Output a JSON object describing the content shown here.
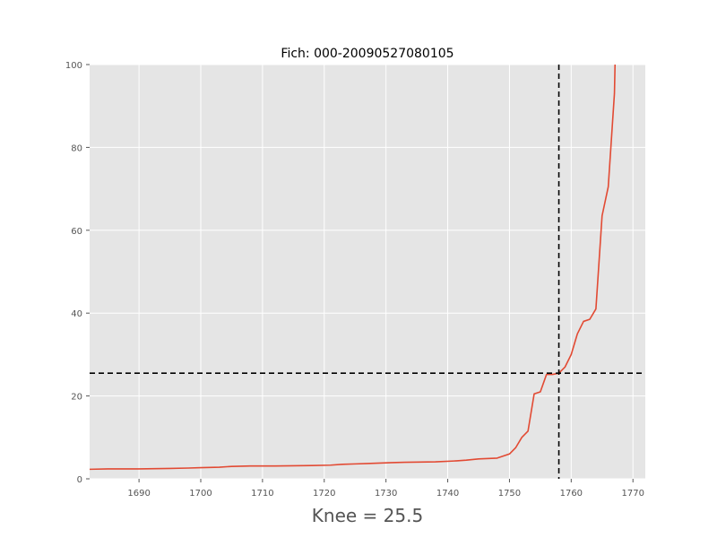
{
  "chart_data": {
    "type": "line",
    "title": "Fich: 000-20090527080105",
    "xlabel": "Knee = 25.5",
    "ylabel": "",
    "xlim": [
      1682,
      1772
    ],
    "ylim": [
      0,
      100
    ],
    "xticks": [
      1690,
      1700,
      1710,
      1720,
      1730,
      1740,
      1750,
      1760,
      1770
    ],
    "yticks": [
      0,
      20,
      40,
      60,
      80,
      100
    ],
    "grid": true,
    "colors": {
      "background": "#e5e5e5",
      "grid": "#ffffff",
      "series": "#e24a33",
      "knee_lines": "#000000"
    },
    "knee": {
      "x": 1758,
      "y": 25.5
    },
    "series": [
      {
        "x": [
          1682,
          1685,
          1690,
          1695,
          1698,
          1700,
          1703,
          1705,
          1708,
          1712,
          1718,
          1721,
          1723,
          1725,
          1727,
          1729,
          1731,
          1733,
          1738,
          1741,
          1743,
          1745,
          1748,
          1750,
          1751,
          1752,
          1753,
          1754,
          1755,
          1756,
          1757,
          1758,
          1759,
          1760,
          1761,
          1762,
          1763,
          1764,
          1765,
          1766,
          1767,
          1767.1
        ],
        "y": [
          2.3,
          2.4,
          2.4,
          2.5,
          2.6,
          2.7,
          2.8,
          3.0,
          3.1,
          3.1,
          3.2,
          3.3,
          3.5,
          3.6,
          3.7,
          3.8,
          3.9,
          4.0,
          4.1,
          4.3,
          4.5,
          4.8,
          5.0,
          6.0,
          7.5,
          10.0,
          11.5,
          20.5,
          21.0,
          25.2,
          25.2,
          25.5,
          27.0,
          30.0,
          35.0,
          38.0,
          38.5,
          41.0,
          63.5,
          70.5,
          93.0,
          100.0
        ]
      }
    ]
  }
}
